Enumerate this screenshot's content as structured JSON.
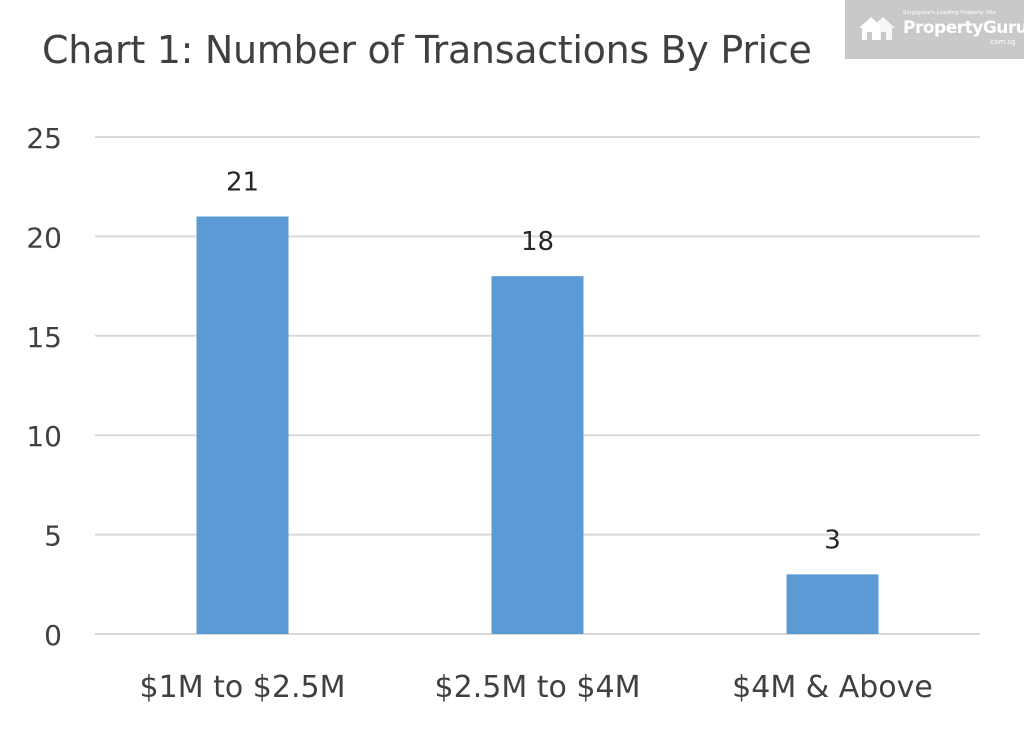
{
  "watermark": {
    "tagline": "Singapore's Leading Property Site",
    "brand": "PropertyGuru",
    "domain": ".com.sg",
    "icon": "house-icon"
  },
  "chart_data": {
    "type": "bar",
    "title": "Chart 1: Number of Transactions By Price",
    "categories": [
      "$1M to $2.5M",
      "$2.5M to $4M",
      "$4M & Above"
    ],
    "values": [
      21,
      18,
      3
    ],
    "data_labels": [
      "21",
      "18",
      "3"
    ],
    "xlabel": "",
    "ylabel": "",
    "ylim": [
      0,
      25
    ],
    "yticks": [
      0,
      5,
      10,
      15,
      20,
      25
    ],
    "grid": true,
    "legend": "none",
    "colors": {
      "bar": "#5b9bd5",
      "grid": "#d9d9d9",
      "text": "#404040",
      "watermark_bg": "#c9c9c9"
    }
  }
}
